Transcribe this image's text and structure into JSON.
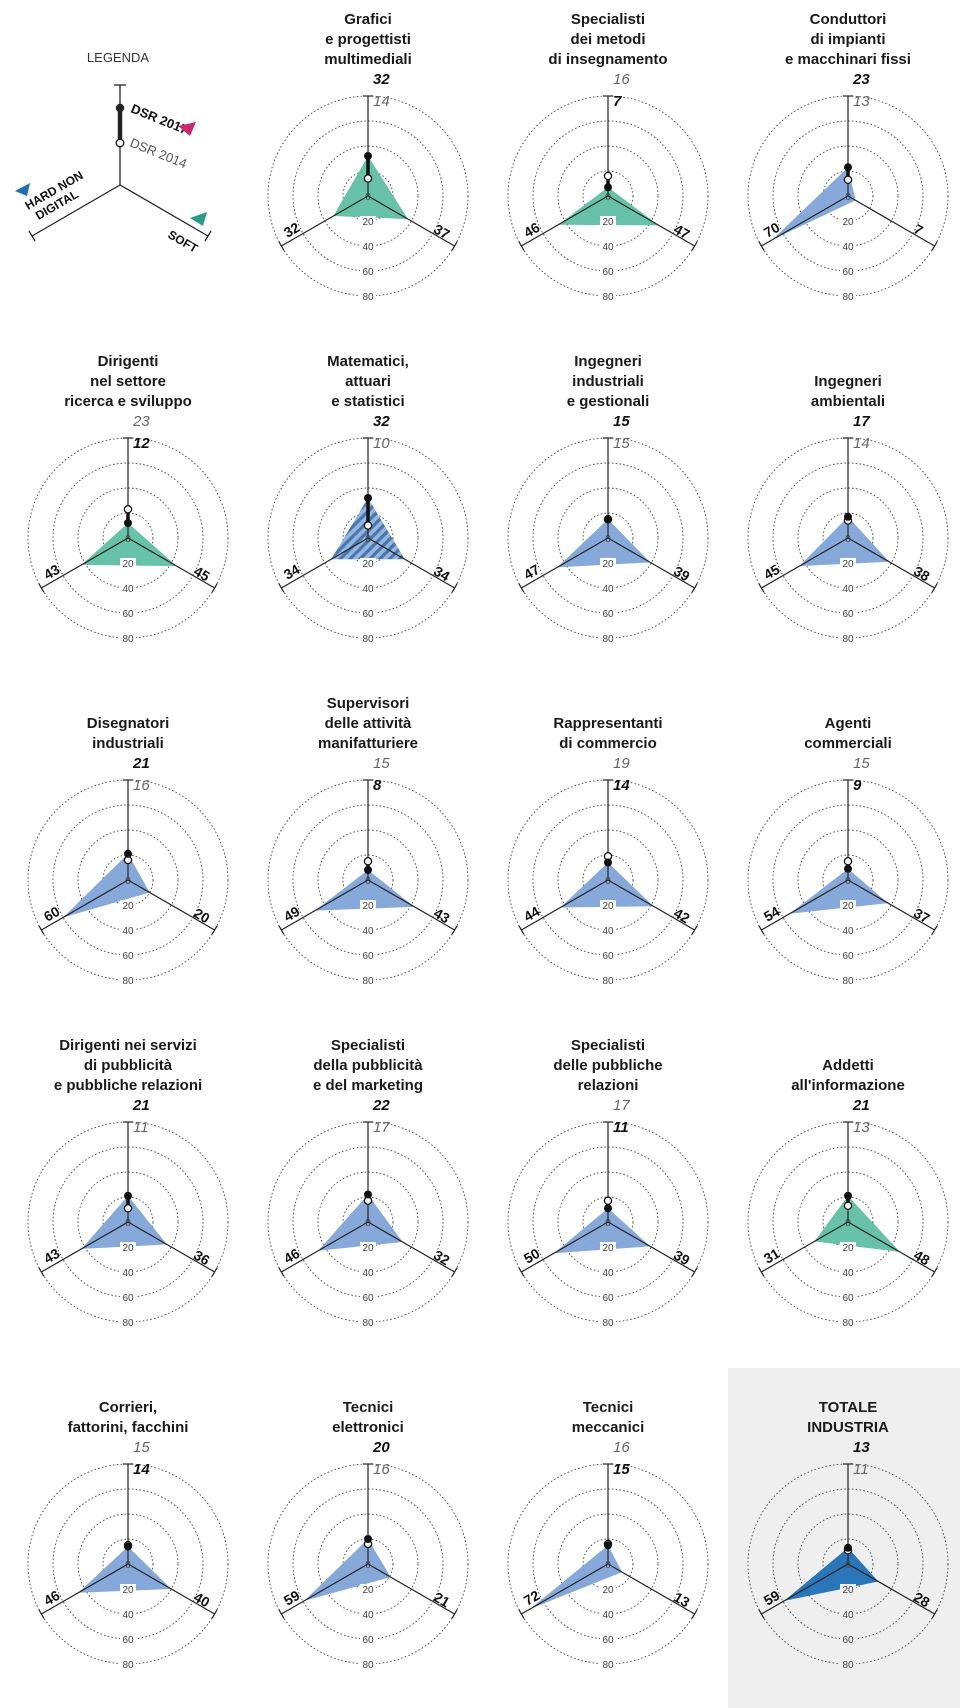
{
  "legend": {
    "title": "LEGENDA",
    "dsr2017": "DSR 2017",
    "dsr2014": "DSR 2014",
    "hard_non_digital": "HARD NON DIGITAL",
    "hard_line1": "HARD NON",
    "hard_line2": "DIGITAL",
    "soft": "SOFT"
  },
  "colors": {
    "teal": "#5fbfa4",
    "blue": "#7fa4d8",
    "dark_blue": "#1f6fb5",
    "legend_red": "#c8286e",
    "legend_blue": "#1f6fb5",
    "legend_teal": "#2a9b87",
    "highlight_bg": "#efefef"
  },
  "ring_labels": [
    "0",
    "20",
    "40",
    "60",
    "80"
  ],
  "chart_data": {
    "type": "radar",
    "axes": [
      "DSR",
      "HARD NON DIGITAL",
      "SOFT"
    ],
    "rlim": [
      0,
      80
    ],
    "panels": [
      {
        "title": "Grafici\ne progettisti\nmultimediali",
        "dsr2017": 32,
        "dsr2014": 14,
        "hard": 32,
        "soft": 37,
        "fill": "teal"
      },
      {
        "title": "Specialisti\ndei metodi\ndi insegnamento",
        "dsr2017": 7,
        "dsr2014": 16,
        "hard": 46,
        "soft": 47,
        "fill": "teal"
      },
      {
        "title": "Conduttori\ndi impianti\ne macchinari fissi",
        "dsr2017": 23,
        "dsr2014": 13,
        "hard": 70,
        "soft": 7,
        "fill": "blue"
      },
      {
        "title": "Dirigenti\nnel settore\nricerca e sviluppo",
        "dsr2017": 12,
        "dsr2014": 23,
        "hard": 43,
        "soft": 45,
        "fill": "teal"
      },
      {
        "title": "Matematici,\nattuari\ne statistici",
        "dsr2017": 32,
        "dsr2014": 10,
        "hard": 34,
        "soft": 34,
        "fill": "hatch"
      },
      {
        "title": "Ingegneri\nindustriali\ne gestionali",
        "dsr2017": 15,
        "dsr2014": 15,
        "hard": 47,
        "soft": 39,
        "fill": "blue"
      },
      {
        "title": "Ingegneri\nambientali",
        "dsr2017": 17,
        "dsr2014": 14,
        "hard": 45,
        "soft": 38,
        "fill": "blue"
      },
      {
        "title": "Disegnatori\nindustriali",
        "dsr2017": 21,
        "dsr2014": 16,
        "hard": 60,
        "soft": 20,
        "fill": "blue"
      },
      {
        "title": "Supervisori\ndelle attività\nmanifatturiere",
        "dsr2017": 8,
        "dsr2014": 15,
        "hard": 49,
        "soft": 43,
        "fill": "blue"
      },
      {
        "title": "Rappresentanti\ndi commercio",
        "dsr2017": 14,
        "dsr2014": 19,
        "hard": 44,
        "soft": 42,
        "fill": "blue"
      },
      {
        "title": "Agenti\ncommerciali",
        "dsr2017": 9,
        "dsr2014": 15,
        "hard": 54,
        "soft": 37,
        "fill": "blue"
      },
      {
        "title": "Dirigenti nei servizi\ndi pubblicità\ne pubbliche relazioni",
        "dsr2017": 21,
        "dsr2014": 11,
        "hard": 43,
        "soft": 36,
        "fill": "blue"
      },
      {
        "title": "Specialisti\ndella pubblicità\ne del marketing",
        "dsr2017": 22,
        "dsr2014": 17,
        "hard": 46,
        "soft": 32,
        "fill": "blue"
      },
      {
        "title": "Specialisti\ndelle pubbliche\nrelazioni",
        "dsr2017": 11,
        "dsr2014": 17,
        "hard": 50,
        "soft": 39,
        "fill": "blue"
      },
      {
        "title": "Addetti\nall'informazione",
        "dsr2017": 21,
        "dsr2014": 13,
        "hard": 31,
        "soft": 48,
        "fill": "teal"
      },
      {
        "title": "Corrieri,\nfattorini, facchini",
        "dsr2017": 14,
        "dsr2014": 15,
        "hard": 46,
        "soft": 40,
        "fill": "blue"
      },
      {
        "title": "Tecnici\nelettronici",
        "dsr2017": 20,
        "dsr2014": 16,
        "hard": 59,
        "soft": 21,
        "fill": "blue"
      },
      {
        "title": "Tecnici\nmeccanici",
        "dsr2017": 15,
        "dsr2014": 16,
        "hard": 72,
        "soft": 13,
        "fill": "blue"
      },
      {
        "title": "TOTALE\nINDUSTRIA",
        "dsr2017": 13,
        "dsr2014": 11,
        "hard": 59,
        "soft": 28,
        "fill": "dark_blue",
        "highlight": true
      }
    ]
  }
}
